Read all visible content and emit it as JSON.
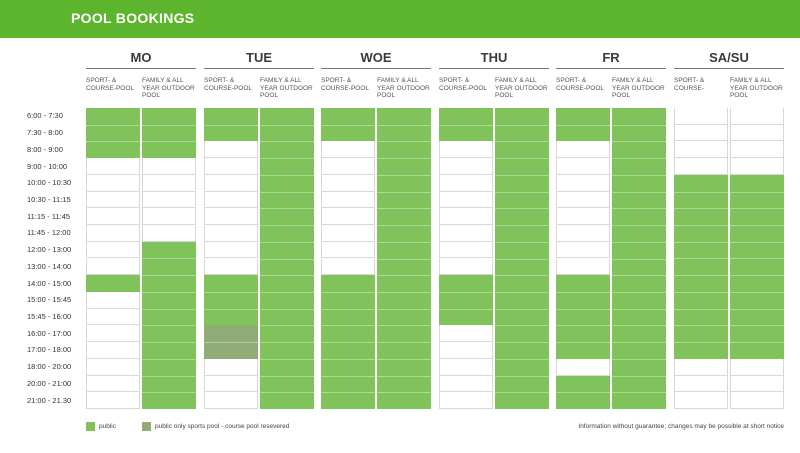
{
  "header": {
    "title": "POOL BOOKINGS"
  },
  "colors": {
    "public": "#7fc35a",
    "partial": "#8fab77",
    "brand": "#5db52e"
  },
  "times": [
    "6:00 - 7:30",
    "7:30 - 8:00",
    "8:00 - 9:00",
    "9:00 - 10:00",
    "10:00 - 10:30",
    "10:30 - 11:15",
    "11:15 - 11:45",
    "11:45 - 12:00",
    "12:00 - 13:00",
    "13:00 - 14:00",
    "14:00 - 15:00",
    "15:00 - 15:45",
    "15:45 - 16:00",
    "16:00 - 17:00",
    "17:00 - 18:00",
    "18:00 - 20:00",
    "20:00 - 21:00",
    "21:00 - 21.30"
  ],
  "days": [
    {
      "name": "MO",
      "sport_label": "SPORT- & COURSE-POOL",
      "family_label": "FAMILY & ALL YEAR OUTDOOR POOL",
      "sport": [
        {
          "from": 0,
          "to": 3,
          "type": "public"
        },
        {
          "from": 10,
          "to": 11,
          "type": "public"
        }
      ],
      "family": [
        {
          "from": 0,
          "to": 3,
          "type": "public"
        },
        {
          "from": 8,
          "to": 18,
          "type": "public"
        }
      ]
    },
    {
      "name": "TUE",
      "sport_label": "SPORT- & COURSE-POOL",
      "family_label": "FAMILY & ALL YEAR OUTDOOR POOL",
      "sport": [
        {
          "from": 0,
          "to": 2,
          "type": "public"
        },
        {
          "from": 10,
          "to": 13,
          "type": "public"
        },
        {
          "from": 13,
          "to": 15,
          "type": "partial"
        }
      ],
      "family": [
        {
          "from": 0,
          "to": 18,
          "type": "public"
        }
      ]
    },
    {
      "name": "WOE",
      "sport_label": "SPORT- & COURSE-POOL",
      "family_label": "FAMILY & ALL YEAR OUTDOOR POOL",
      "sport": [
        {
          "from": 0,
          "to": 2,
          "type": "public"
        },
        {
          "from": 10,
          "to": 18,
          "type": "public"
        }
      ],
      "family": [
        {
          "from": 0,
          "to": 18,
          "type": "public"
        }
      ]
    },
    {
      "name": "THU",
      "sport_label": "SPORT- & COURSE-POOL",
      "family_label": "FAMILY & ALL YEAR OUTDOOR POOL",
      "sport": [
        {
          "from": 0,
          "to": 2,
          "type": "public"
        },
        {
          "from": 10,
          "to": 13,
          "type": "public"
        }
      ],
      "family": [
        {
          "from": 0,
          "to": 18,
          "type": "public"
        }
      ]
    },
    {
      "name": "FR",
      "sport_label": "SPORT- & COURSE-POOL",
      "family_label": "FAMILY & ALL YEAR OUTDOOR POOL",
      "sport": [
        {
          "from": 0,
          "to": 2,
          "type": "public"
        },
        {
          "from": 10,
          "to": 15,
          "type": "public"
        },
        {
          "from": 16,
          "to": 18,
          "type": "public"
        }
      ],
      "family": [
        {
          "from": 0,
          "to": 18,
          "type": "public"
        }
      ]
    },
    {
      "name": "SA/SU",
      "sport_label": "SPORT- & COURSE-",
      "family_label": "FAMILY & ALL YEAR OUTDOOR POOL",
      "sport": [
        {
          "from": 4,
          "to": 15,
          "type": "public"
        }
      ],
      "family": [
        {
          "from": 4,
          "to": 15,
          "type": "public"
        }
      ]
    }
  ],
  "legend": {
    "public": "public",
    "partial": "public only sports pool - course pool resevered",
    "note": "Information without guarantee; changes may be possible at short notice"
  }
}
